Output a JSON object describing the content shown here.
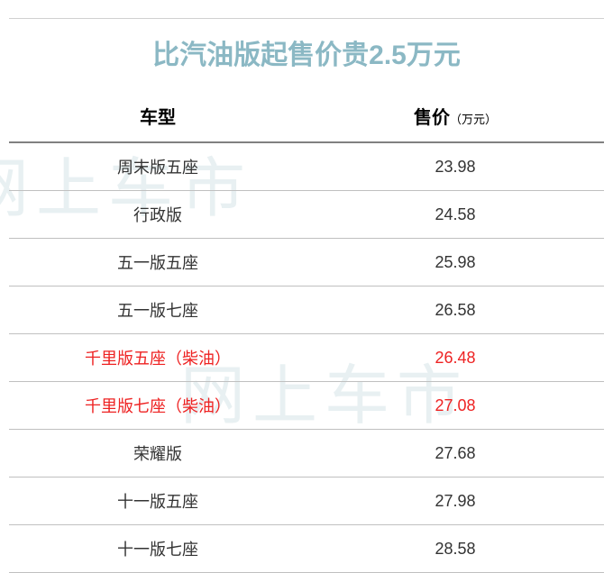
{
  "watermark_text": "网上车市",
  "title": "比汽油版起售价贵2.5万元",
  "headers": {
    "model": "车型",
    "price": "售价",
    "price_unit": "（万元）"
  },
  "rows": [
    {
      "model": "周末版五座",
      "price": "23.98",
      "highlight": false
    },
    {
      "model": "行政版",
      "price": "24.58",
      "highlight": false
    },
    {
      "model": "五一版五座",
      "price": "25.98",
      "highlight": false
    },
    {
      "model": "五一版七座",
      "price": "26.58",
      "highlight": false
    },
    {
      "model": "千里版五座（柴油）",
      "price": "26.48",
      "highlight": true
    },
    {
      "model": "千里版七座（柴油）",
      "price": "27.08",
      "highlight": true
    },
    {
      "model": "荣耀版",
      "price": "27.68",
      "highlight": false
    },
    {
      "model": "十一版五座",
      "price": "27.98",
      "highlight": false
    },
    {
      "model": "十一版七座",
      "price": "28.58",
      "highlight": false
    }
  ],
  "colors": {
    "title_color": "#8bb8c4",
    "highlight_color": "#ee2222",
    "text_color": "#333333",
    "border_color": "#c0c0c0",
    "header_border": "#808080",
    "watermark_color": "#e8f0f2"
  }
}
